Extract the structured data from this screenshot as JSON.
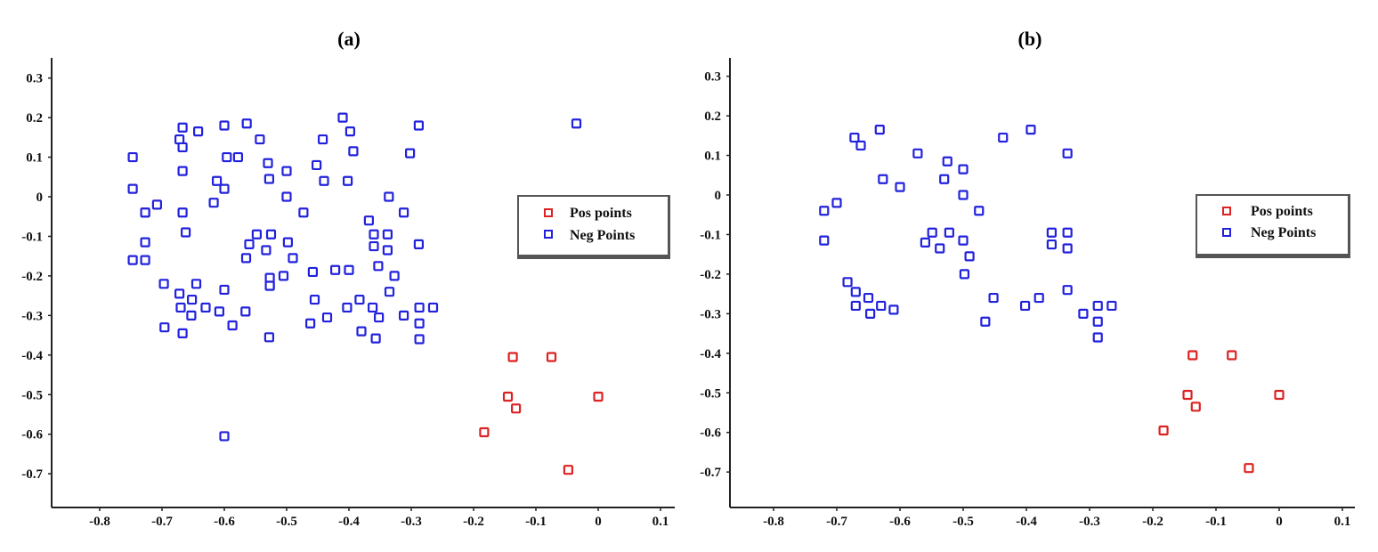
{
  "colors": {
    "pos": "#dd2222",
    "neg": "#2222dd",
    "axis": "#222222",
    "legend_border": "#555555"
  },
  "chart_data": [
    {
      "type": "scatter",
      "title": "(a)",
      "xlabel": "",
      "ylabel": "",
      "xlim": [
        -0.85,
        0.12
      ],
      "ylim": [
        -0.79,
        0.35
      ],
      "xticks": [
        -0.8,
        -0.7,
        -0.6,
        -0.5,
        -0.4,
        -0.3,
        -0.2,
        -0.1,
        0,
        0.1
      ],
      "yticks": [
        0.3,
        0.2,
        0.1,
        0,
        -0.1,
        -0.2,
        -0.3,
        -0.4,
        -0.5,
        -0.6,
        -0.7
      ],
      "legend": {
        "placement": "right",
        "entries": [
          "Pos points",
          "Neg Points"
        ]
      },
      "grid": false,
      "series": [
        {
          "name": "Pos points",
          "x": [
            -0.137,
            -0.075,
            -0.145,
            -0.132,
            0,
            -0.183,
            -0.048
          ],
          "y": [
            -0.405,
            -0.405,
            -0.505,
            -0.535,
            -0.505,
            -0.595,
            -0.69
          ]
        },
        {
          "name": "Neg Points",
          "x": [
            -0.747,
            -0.747,
            -0.727,
            -0.727,
            -0.727,
            -0.747,
            -0.727,
            -0.708,
            -0.672,
            -0.667,
            -0.667,
            -0.667,
            -0.667,
            -0.662,
            -0.642,
            -0.6,
            -0.564,
            -0.543,
            -0.596,
            -0.578,
            -0.612,
            -0.617,
            -0.6,
            -0.53,
            -0.528,
            -0.5,
            -0.5,
            -0.473,
            -0.452,
            -0.442,
            -0.44,
            -0.41,
            -0.398,
            -0.393,
            -0.402,
            -0.336,
            -0.302,
            -0.288,
            -0.56,
            -0.548,
            -0.565,
            -0.533,
            -0.525,
            -0.498,
            -0.49,
            -0.458,
            -0.422,
            -0.4,
            -0.36,
            -0.36,
            -0.338,
            -0.338,
            -0.312,
            -0.288,
            -0.353,
            -0.335,
            -0.327,
            -0.697,
            -0.672,
            -0.67,
            -0.652,
            -0.645,
            -0.653,
            -0.63,
            -0.608,
            -0.6,
            -0.566,
            -0.587,
            -0.527,
            -0.527,
            -0.505,
            -0.455,
            -0.435,
            -0.462,
            -0.403,
            -0.383,
            -0.362,
            -0.357,
            -0.38,
            -0.352,
            -0.312,
            -0.287,
            -0.287,
            -0.287,
            -0.265,
            -0.696,
            -0.667,
            -0.528,
            -0.6,
            -0.035,
            -0.368,
            -0.527
          ],
          "y": [
            0.1,
            0.02,
            -0.04,
            -0.115,
            -0.16,
            -0.16,
            -0.04,
            -0.02,
            0.145,
            0.175,
            0.125,
            0.065,
            -0.04,
            -0.09,
            0.165,
            0.18,
            0.185,
            0.145,
            0.1,
            0.1,
            0.04,
            -0.015,
            0.02,
            0.085,
            0.045,
            0.065,
            0.0,
            -0.04,
            0.08,
            0.145,
            0.04,
            0.2,
            0.165,
            0.115,
            0.04,
            0.0,
            0.11,
            0.18,
            -0.12,
            -0.095,
            -0.155,
            -0.135,
            -0.095,
            -0.115,
            -0.155,
            -0.19,
            -0.185,
            -0.185,
            -0.095,
            -0.125,
            -0.095,
            -0.135,
            -0.04,
            -0.12,
            -0.175,
            -0.24,
            -0.2,
            -0.22,
            -0.245,
            -0.28,
            -0.26,
            -0.22,
            -0.3,
            -0.28,
            -0.29,
            -0.235,
            -0.29,
            -0.325,
            -0.205,
            -0.225,
            -0.2,
            -0.26,
            -0.305,
            -0.32,
            -0.28,
            -0.26,
            -0.28,
            -0.358,
            -0.34,
            -0.305,
            -0.3,
            -0.28,
            -0.32,
            -0.36,
            -0.28,
            -0.33,
            -0.345,
            -0.355,
            -0.605,
            0.185,
            -0.06,
            -0.225
          ]
        }
      ]
    },
    {
      "type": "scatter",
      "title": "(b)",
      "xlabel": "",
      "ylabel": "",
      "xlim": [
        -0.85,
        0.12
      ],
      "ylim": [
        -0.79,
        0.35
      ],
      "xticks": [
        -0.8,
        -0.7,
        -0.6,
        -0.5,
        -0.4,
        -0.3,
        -0.2,
        -0.1,
        0,
        0.1
      ],
      "yticks": [
        0.3,
        0.2,
        0.1,
        0,
        -0.1,
        -0.2,
        -0.3,
        -0.4,
        -0.5,
        -0.6,
        -0.7
      ],
      "legend": {
        "placement": "right",
        "entries": [
          "Pos points",
          "Neg Points"
        ]
      },
      "grid": false,
      "series": [
        {
          "name": "Pos points",
          "x": [
            -0.137,
            -0.075,
            -0.145,
            -0.132,
            0,
            -0.183,
            -0.048
          ],
          "y": [
            -0.405,
            -0.405,
            -0.505,
            -0.535,
            -0.505,
            -0.595,
            -0.69
          ]
        },
        {
          "name": "Neg Points",
          "x": [
            -0.672,
            -0.662,
            -0.632,
            -0.572,
            -0.627,
            -0.6,
            -0.72,
            -0.7,
            -0.72,
            -0.525,
            -0.53,
            -0.5,
            -0.5,
            -0.475,
            -0.437,
            -0.393,
            -0.335,
            -0.549,
            -0.56,
            -0.522,
            -0.537,
            -0.5,
            -0.49,
            -0.498,
            -0.36,
            -0.335,
            -0.36,
            -0.335,
            -0.683,
            -0.67,
            -0.67,
            -0.65,
            -0.647,
            -0.63,
            -0.61,
            -0.452,
            -0.465,
            -0.402,
            -0.38,
            -0.335,
            -0.31,
            -0.287,
            -0.287,
            -0.287,
            -0.265
          ],
          "y": [
            0.145,
            0.125,
            0.165,
            0.105,
            0.04,
            0.02,
            -0.04,
            -0.02,
            -0.115,
            0.085,
            0.04,
            0.065,
            0.0,
            -0.04,
            0.145,
            0.165,
            0.105,
            -0.095,
            -0.12,
            -0.095,
            -0.135,
            -0.115,
            -0.155,
            -0.2,
            -0.095,
            -0.095,
            -0.125,
            -0.135,
            -0.22,
            -0.245,
            -0.28,
            -0.26,
            -0.3,
            -0.28,
            -0.29,
            -0.26,
            -0.32,
            -0.28,
            -0.26,
            -0.24,
            -0.3,
            -0.28,
            -0.32,
            -0.36,
            -0.28
          ]
        }
      ]
    }
  ],
  "panels": [
    {
      "title": "(a)",
      "legend": {
        "pos_label": "Pos points",
        "neg_label": "Neg Points"
      }
    },
    {
      "title": "(b)",
      "legend": {
        "pos_label": "Pos points",
        "neg_label": "Neg Points"
      }
    }
  ]
}
